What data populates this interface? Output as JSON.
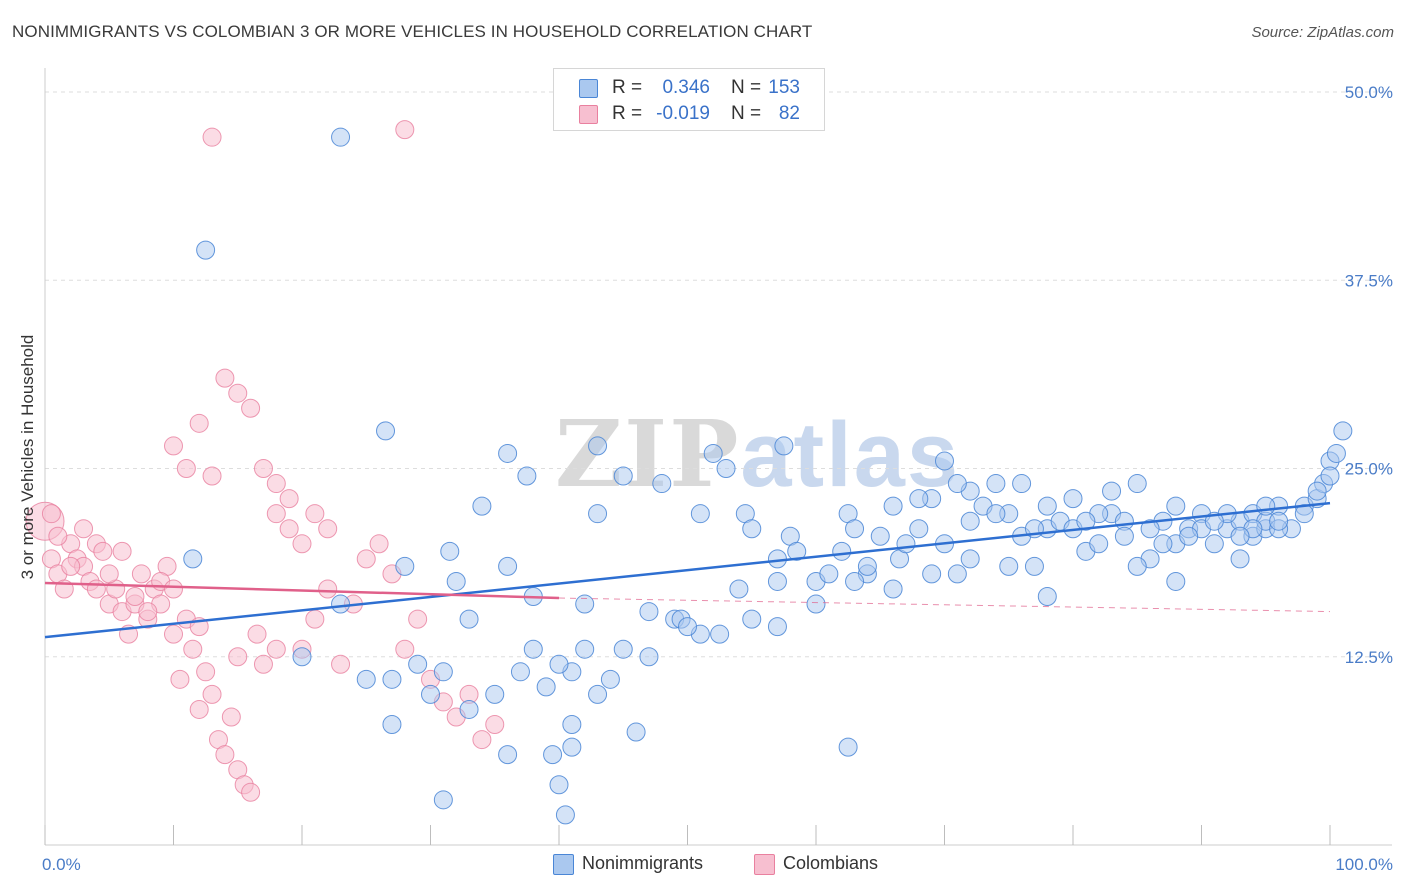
{
  "title": "NONIMMIGRANTS VS COLOMBIAN 3 OR MORE VEHICLES IN HOUSEHOLD CORRELATION CHART",
  "source": "Source: ZipAtlas.com",
  "watermark": {
    "zip": "ZIP",
    "atlas": "atlas"
  },
  "colors": {
    "blue": "#4a86d6",
    "blue_fill": "#aac8ef",
    "blue_line": "#2e6fd1",
    "pink": "#e9809f",
    "pink_fill": "#f7bfd0",
    "pink_line": "#e0608a",
    "tick_text": "#4a7cc7",
    "grid": "#dddddd"
  },
  "legend": {
    "rows": [
      {
        "r_label": "R =",
        "r_value": "0.346",
        "n_label": "N =",
        "n_value": "153",
        "color": "#aac8ef",
        "border": "#4a86d6"
      },
      {
        "r_label": "R =",
        "r_value": "-0.019",
        "n_label": "N =",
        "n_value": "82",
        "color": "#f7bfd0",
        "border": "#e9809f"
      }
    ]
  },
  "bottom_legend": [
    {
      "label": "Nonimmigrants",
      "color": "#aac8ef",
      "border": "#4a86d6"
    },
    {
      "label": "Colombians",
      "color": "#f7bfd0",
      "border": "#e9809f"
    }
  ],
  "chart_data": {
    "type": "scatter",
    "title": "NONIMMIGRANTS VS COLOMBIAN 3 OR MORE VEHICLES IN HOUSEHOLD CORRELATION CHART",
    "xlabel": "",
    "ylabel": "3 or more Vehicles in Household",
    "xlim": [
      0,
      100
    ],
    "ylim": [
      0,
      50
    ],
    "x_tick_labels": [
      "0.0%",
      "100.0%"
    ],
    "y_ticks": [
      12.5,
      25.0,
      37.5,
      50.0
    ],
    "y_tick_labels": [
      "12.5%",
      "25.0%",
      "37.5%",
      "50.0%"
    ],
    "grid": "horizontal dashed",
    "legend_position": "top-center",
    "series": [
      {
        "name": "Nonimmigrants",
        "trend": {
          "x": [
            0,
            100
          ],
          "y": [
            13.8,
            22.7
          ],
          "style": "solid"
        },
        "points": [
          [
            23,
            47
          ],
          [
            12.5,
            39.5
          ],
          [
            26.5,
            27.5
          ],
          [
            36,
            26
          ],
          [
            43,
            26.5
          ],
          [
            45,
            24.5
          ],
          [
            57.5,
            26.5
          ],
          [
            37.5,
            24.5
          ],
          [
            31.5,
            19.5
          ],
          [
            28,
            18.5
          ],
          [
            11.5,
            19
          ],
          [
            34,
            22.5
          ],
          [
            38,
            16.5
          ],
          [
            36,
            18.5
          ],
          [
            42,
            16
          ],
          [
            41,
            11.5
          ],
          [
            43,
            22
          ],
          [
            51,
            22
          ],
          [
            53,
            25
          ],
          [
            48,
            24
          ],
          [
            52,
            26
          ],
          [
            54.5,
            22
          ],
          [
            55,
            21
          ],
          [
            57,
            19
          ],
          [
            58,
            20.5
          ],
          [
            60,
            17.5
          ],
          [
            62,
            19.5
          ],
          [
            64,
            18
          ],
          [
            65,
            20.5
          ],
          [
            66.5,
            19
          ],
          [
            68,
            21
          ],
          [
            69,
            23
          ],
          [
            70,
            20
          ],
          [
            71,
            18
          ],
          [
            72,
            21.5
          ],
          [
            73,
            22.5
          ],
          [
            74,
            24
          ],
          [
            75,
            22
          ],
          [
            76,
            20.5
          ],
          [
            77,
            18.5
          ],
          [
            78,
            21
          ],
          [
            79,
            21.5
          ],
          [
            80,
            23
          ],
          [
            81,
            19.5
          ],
          [
            82,
            20
          ],
          [
            83,
            22
          ],
          [
            84,
            21.5
          ],
          [
            85,
            24
          ],
          [
            86,
            19
          ],
          [
            87,
            21.5
          ],
          [
            88,
            20
          ],
          [
            89,
            21
          ],
          [
            90,
            22
          ],
          [
            91,
            20
          ],
          [
            92,
            21
          ],
          [
            93,
            19
          ],
          [
            94,
            20.5
          ],
          [
            95,
            21
          ],
          [
            96,
            22.5
          ],
          [
            97,
            21
          ],
          [
            98,
            22.5
          ],
          [
            99,
            23
          ],
          [
            99.5,
            24
          ],
          [
            100,
            25.5
          ],
          [
            100.5,
            26
          ],
          [
            101,
            27.5
          ],
          [
            93,
            21.5
          ],
          [
            94,
            22
          ],
          [
            95,
            21.5
          ],
          [
            96,
            21
          ],
          [
            88,
            17.5
          ],
          [
            85,
            18.5
          ],
          [
            78,
            16.5
          ],
          [
            75,
            18.5
          ],
          [
            72,
            19
          ],
          [
            69,
            18
          ],
          [
            66,
            17
          ],
          [
            63,
            17.5
          ],
          [
            60,
            16
          ],
          [
            57,
            17.5
          ],
          [
            54,
            17
          ],
          [
            51,
            14
          ],
          [
            49,
            15
          ],
          [
            47,
            12.5
          ],
          [
            45,
            13
          ],
          [
            43,
            10
          ],
          [
            41,
            8
          ],
          [
            39,
            10.5
          ],
          [
            37,
            11.5
          ],
          [
            35,
            10
          ],
          [
            33,
            9
          ],
          [
            31,
            11.5
          ],
          [
            29,
            12
          ],
          [
            27,
            11
          ],
          [
            25,
            11
          ],
          [
            23,
            16
          ],
          [
            20,
            12.5
          ],
          [
            40,
            12
          ],
          [
            42,
            13
          ],
          [
            44,
            11
          ],
          [
            47,
            15.5
          ],
          [
            49.5,
            15
          ],
          [
            50,
            14.5
          ],
          [
            52.5,
            14
          ],
          [
            55,
            15
          ],
          [
            57,
            14.5
          ],
          [
            32,
            17.5
          ],
          [
            33,
            15
          ],
          [
            38,
            13
          ],
          [
            46,
            7.5
          ],
          [
            36,
            6
          ],
          [
            40,
            4
          ],
          [
            40.5,
            2
          ],
          [
            31,
            3
          ],
          [
            27,
            8
          ],
          [
            41,
            6.5
          ],
          [
            39.5,
            6
          ],
          [
            30,
            10
          ],
          [
            62.5,
            6.5
          ],
          [
            62.5,
            22
          ],
          [
            64,
            18.5
          ],
          [
            66,
            22.5
          ],
          [
            68,
            23
          ],
          [
            70,
            25.5
          ],
          [
            72,
            23.5
          ],
          [
            74,
            22
          ],
          [
            76,
            24
          ],
          [
            78,
            22.5
          ],
          [
            80,
            21
          ],
          [
            82,
            22
          ],
          [
            84,
            20.5
          ],
          [
            86,
            21
          ],
          [
            88,
            22.5
          ],
          [
            90,
            21
          ],
          [
            92,
            22
          ],
          [
            94,
            21
          ],
          [
            96,
            21.5
          ],
          [
            98,
            22
          ],
          [
            99,
            23.5
          ],
          [
            100,
            24.5
          ],
          [
            58.5,
            19.5
          ],
          [
            61,
            18
          ],
          [
            63,
            21
          ],
          [
            67,
            20
          ],
          [
            71,
            24
          ],
          [
            77,
            21
          ],
          [
            81,
            21.5
          ],
          [
            83,
            23.5
          ],
          [
            87,
            20
          ],
          [
            89,
            20.5
          ],
          [
            91,
            21.5
          ],
          [
            93,
            20.5
          ],
          [
            95,
            22.5
          ]
        ]
      },
      {
        "name": "Colombians",
        "trend": {
          "x": [
            0,
            40
          ],
          "y": [
            17.4,
            16.4
          ],
          "style": "solid",
          "extension_to": [
            100,
            15.5
          ]
        },
        "points": [
          [
            0,
            21.5
          ],
          [
            0.5,
            19
          ],
          [
            1,
            18
          ],
          [
            1.5,
            17
          ],
          [
            2,
            20
          ],
          [
            2.5,
            19
          ],
          [
            3,
            18.5
          ],
          [
            3.5,
            17.5
          ],
          [
            4,
            20
          ],
          [
            4.5,
            19.5
          ],
          [
            5,
            16
          ],
          [
            5.5,
            17
          ],
          [
            6,
            15.5
          ],
          [
            6.5,
            14
          ],
          [
            7,
            16
          ],
          [
            7.5,
            18
          ],
          [
            8,
            15
          ],
          [
            8.5,
            17
          ],
          [
            9,
            16
          ],
          [
            9.5,
            18.5
          ],
          [
            10,
            14
          ],
          [
            10.5,
            11
          ],
          [
            11,
            15
          ],
          [
            11.5,
            13
          ],
          [
            12,
            9
          ],
          [
            12.5,
            11.5
          ],
          [
            13,
            10
          ],
          [
            13.5,
            7
          ],
          [
            14,
            6
          ],
          [
            14.5,
            8.5
          ],
          [
            15,
            5
          ],
          [
            15.5,
            4
          ],
          [
            16,
            3.5
          ],
          [
            16.5,
            14
          ],
          [
            17,
            12
          ],
          [
            18,
            24
          ],
          [
            19,
            21
          ],
          [
            20,
            13
          ],
          [
            21,
            15
          ],
          [
            22,
            17
          ],
          [
            23,
            12
          ],
          [
            24,
            16
          ],
          [
            25,
            19
          ],
          [
            26,
            20
          ],
          [
            27,
            18
          ],
          [
            28,
            13
          ],
          [
            29,
            15
          ],
          [
            30,
            11
          ],
          [
            31,
            9.5
          ],
          [
            32,
            8.5
          ],
          [
            33,
            10
          ],
          [
            34,
            7
          ],
          [
            35,
            8
          ],
          [
            10,
            26.5
          ],
          [
            11,
            25
          ],
          [
            12,
            28
          ],
          [
            13,
            24.5
          ],
          [
            14,
            31
          ],
          [
            15,
            30
          ],
          [
            16,
            29
          ],
          [
            17,
            25
          ],
          [
            18,
            22
          ],
          [
            19,
            23
          ],
          [
            20,
            20
          ],
          [
            21,
            22
          ],
          [
            22,
            21
          ],
          [
            13,
            47
          ],
          [
            28,
            47.5
          ],
          [
            0.5,
            22
          ],
          [
            1,
            20.5
          ],
          [
            2,
            18.5
          ],
          [
            3,
            21
          ],
          [
            4,
            17
          ],
          [
            5,
            18
          ],
          [
            6,
            19.5
          ],
          [
            7,
            16.5
          ],
          [
            8,
            15.5
          ],
          [
            9,
            17.5
          ],
          [
            10,
            17
          ],
          [
            12,
            14.5
          ],
          [
            15,
            12.5
          ],
          [
            18,
            13
          ]
        ]
      }
    ]
  }
}
